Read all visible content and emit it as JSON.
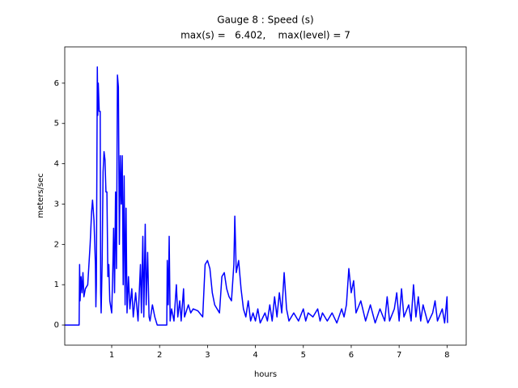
{
  "chart_data": {
    "type": "line",
    "title": "Gauge 8 : Speed (s)",
    "subtitle": "max(s) =   6.402,    max(level) = 7",
    "x_label": "hours",
    "y_label": "meters/sec",
    "xlim": [
      0.02,
      8.4
    ],
    "ylim": [
      -0.5,
      6.9
    ],
    "xticks": [
      1,
      2,
      3,
      4,
      5,
      6,
      7,
      8
    ],
    "yticks": [
      0,
      1,
      2,
      3,
      4,
      5,
      6
    ],
    "x": [
      0.02,
      0.3,
      0.32,
      0.33,
      0.34,
      0.36,
      0.38,
      0.4,
      0.42,
      0.45,
      0.5,
      0.55,
      0.58,
      0.6,
      0.63,
      0.66,
      0.67,
      0.68,
      0.7,
      0.71,
      0.72,
      0.74,
      0.76,
      0.77,
      0.78,
      0.8,
      0.82,
      0.84,
      0.86,
      0.88,
      0.9,
      0.92,
      0.94,
      0.96,
      1.0,
      1.02,
      1.04,
      1.06,
      1.08,
      1.1,
      1.12,
      1.14,
      1.16,
      1.18,
      1.2,
      1.22,
      1.24,
      1.26,
      1.28,
      1.3,
      1.32,
      1.35,
      1.38,
      1.42,
      1.45,
      1.5,
      1.55,
      1.6,
      1.62,
      1.65,
      1.67,
      1.7,
      1.72,
      1.75,
      1.78,
      1.8,
      1.85,
      1.9,
      1.95,
      2.1,
      2.15,
      2.16,
      2.18,
      2.2,
      2.22,
      2.25,
      2.3,
      2.35,
      2.38,
      2.42,
      2.45,
      2.5,
      2.52,
      2.6,
      2.65,
      2.7,
      2.8,
      2.9,
      2.95,
      3.0,
      3.05,
      3.1,
      3.15,
      3.2,
      3.25,
      3.3,
      3.35,
      3.4,
      3.45,
      3.5,
      3.55,
      3.57,
      3.6,
      3.65,
      3.7,
      3.75,
      3.8,
      3.85,
      3.9,
      3.95,
      4.0,
      4.05,
      4.1,
      4.2,
      4.25,
      4.3,
      4.35,
      4.4,
      4.45,
      4.5,
      4.55,
      4.6,
      4.65,
      4.7,
      4.8,
      4.9,
      5.0,
      5.05,
      5.1,
      5.2,
      5.3,
      5.35,
      5.4,
      5.5,
      5.6,
      5.7,
      5.8,
      5.85,
      5.9,
      5.95,
      6.0,
      6.05,
      6.1,
      6.2,
      6.3,
      6.4,
      6.5,
      6.6,
      6.7,
      6.75,
      6.8,
      6.9,
      6.95,
      7.0,
      7.05,
      7.1,
      7.2,
      7.25,
      7.3,
      7.35,
      7.4,
      7.45,
      7.5,
      7.6,
      7.7,
      7.75,
      7.8,
      7.9,
      7.95,
      8.0,
      8.01
    ],
    "series": [
      {
        "color": "#0000ff",
        "values": [
          0,
          0,
          0,
          1.5,
          0.6,
          1.2,
          0.8,
          1.3,
          0.7,
          0.9,
          1.0,
          2.0,
          2.8,
          3.1,
          2.6,
          1.5,
          0.45,
          1.0,
          6.4,
          5.2,
          6.0,
          5.3,
          5.3,
          0.8,
          0.3,
          1.5,
          3.8,
          4.3,
          4.1,
          3.3,
          3.3,
          1.2,
          1.5,
          0.6,
          0.3,
          1.2,
          2.4,
          0.8,
          3.3,
          1.4,
          6.2,
          5.9,
          2.0,
          4.2,
          3.0,
          4.2,
          1.0,
          3.7,
          0.5,
          2.9,
          0.3,
          1.2,
          0.4,
          0.9,
          0.2,
          0.8,
          0.1,
          1.5,
          0.3,
          2.2,
          0.2,
          2.5,
          0.5,
          1.8,
          0.2,
          0.1,
          0.5,
          0.2,
          0,
          0,
          0,
          1.6,
          0.5,
          2.2,
          0.1,
          0.4,
          0.1,
          1.0,
          0.2,
          0.6,
          0.1,
          0.9,
          0.2,
          0.5,
          0.3,
          0.4,
          0.35,
          0.2,
          1.5,
          1.6,
          1.4,
          0.8,
          0.5,
          0.4,
          0.3,
          1.2,
          1.3,
          0.9,
          0.7,
          0.6,
          1.5,
          2.7,
          1.3,
          1.6,
          0.9,
          0.4,
          0.2,
          0.6,
          0.1,
          0.3,
          0.1,
          0.4,
          0.05,
          0.3,
          0.1,
          0.5,
          0.1,
          0.7,
          0.2,
          0.8,
          0.3,
          1.3,
          0.4,
          0.1,
          0.3,
          0.1,
          0.4,
          0.1,
          0.3,
          0.2,
          0.4,
          0.1,
          0.3,
          0.1,
          0.3,
          0.05,
          0.4,
          0.2,
          0.5,
          1.4,
          0.8,
          1.1,
          0.3,
          0.6,
          0.1,
          0.5,
          0.05,
          0.4,
          0.1,
          0.7,
          0.1,
          0.4,
          0.8,
          0.1,
          0.9,
          0.2,
          0.5,
          0.1,
          1.0,
          0.2,
          0.7,
          0.1,
          0.5,
          0.05,
          0.3,
          0.6,
          0.1,
          0.4,
          0.05,
          0.7,
          0.05
        ]
      }
    ]
  }
}
